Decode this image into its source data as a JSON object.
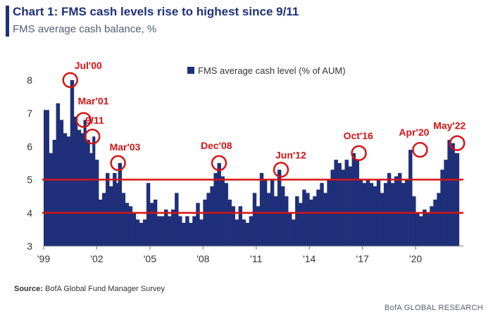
{
  "header": {
    "title": "Chart 1: FMS cash levels rise to highest since 9/11",
    "subtitle": "FMS average cash balance, %"
  },
  "footer": {
    "source_label": "Source:",
    "source_text": "BofA Global Fund Manager Survey",
    "brand": "BofA GLOBAL RESEARCH"
  },
  "colors": {
    "title": "#1f2f7a",
    "bar": "#1f2f7a",
    "annotation": "#d51414",
    "reference_line": "#d51414"
  },
  "chart_data": {
    "type": "bar",
    "title": "FMS cash levels rise to highest since 9/11",
    "ylabel": "FMS average cash balance, %",
    "xlabel": "",
    "ylim": [
      3,
      8.4
    ],
    "yticks": [
      3,
      4,
      5,
      6,
      7,
      8
    ],
    "xlim": [
      1999.0,
      2022.7
    ],
    "xticks": [
      "'99",
      "'02",
      "'05",
      "'08",
      "'11",
      "'14",
      "'17",
      "'20"
    ],
    "xtick_years": [
      1999,
      2002,
      2005,
      2008,
      2011,
      2014,
      2017,
      2020
    ],
    "legend": {
      "label": "FMS average cash level (% of AUM)",
      "position": "top-center"
    },
    "reference_lines": [
      5.0,
      4.0
    ],
    "series": [
      {
        "name": "FMS average cash level (% of AUM)",
        "points": [
          [
            1999.0,
            7.1
          ],
          [
            1999.3,
            5.8
          ],
          [
            1999.5,
            6.2
          ],
          [
            1999.7,
            7.3
          ],
          [
            1999.9,
            6.8
          ],
          [
            2000.1,
            6.4
          ],
          [
            2000.3,
            6.3
          ],
          [
            2000.5,
            8.0
          ],
          [
            2000.7,
            6.9
          ],
          [
            2000.9,
            6.5
          ],
          [
            2001.1,
            6.4
          ],
          [
            2001.25,
            6.8
          ],
          [
            2001.4,
            6.2
          ],
          [
            2001.6,
            5.8
          ],
          [
            2001.75,
            6.3
          ],
          [
            2001.9,
            5.6
          ],
          [
            2002.1,
            4.4
          ],
          [
            2002.3,
            4.6
          ],
          [
            2002.5,
            5.2
          ],
          [
            2002.7,
            4.8
          ],
          [
            2002.9,
            5.2
          ],
          [
            2003.1,
            4.9
          ],
          [
            2003.2,
            5.5
          ],
          [
            2003.4,
            4.6
          ],
          [
            2003.6,
            4.3
          ],
          [
            2003.8,
            4.2
          ],
          [
            2004.0,
            4.0
          ],
          [
            2004.2,
            3.8
          ],
          [
            2004.4,
            3.7
          ],
          [
            2004.6,
            3.8
          ],
          [
            2004.8,
            4.9
          ],
          [
            2005.0,
            4.3
          ],
          [
            2005.2,
            4.4
          ],
          [
            2005.4,
            3.9
          ],
          [
            2005.6,
            3.9
          ],
          [
            2005.8,
            4.1
          ],
          [
            2006.0,
            3.9
          ],
          [
            2006.2,
            4.1
          ],
          [
            2006.4,
            4.6
          ],
          [
            2006.6,
            3.9
          ],
          [
            2006.8,
            3.7
          ],
          [
            2007.0,
            3.9
          ],
          [
            2007.2,
            3.7
          ],
          [
            2007.4,
            3.9
          ],
          [
            2007.6,
            4.3
          ],
          [
            2007.8,
            3.8
          ],
          [
            2008.0,
            4.4
          ],
          [
            2008.2,
            4.6
          ],
          [
            2008.4,
            4.8
          ],
          [
            2008.6,
            5.2
          ],
          [
            2008.8,
            5.5
          ],
          [
            2009.0,
            5.1
          ],
          [
            2009.2,
            4.9
          ],
          [
            2009.4,
            4.4
          ],
          [
            2009.6,
            4.2
          ],
          [
            2009.8,
            3.8
          ],
          [
            2010.0,
            4.2
          ],
          [
            2010.2,
            3.8
          ],
          [
            2010.4,
            3.7
          ],
          [
            2010.6,
            3.9
          ],
          [
            2010.8,
            4.6
          ],
          [
            2011.0,
            4.2
          ],
          [
            2011.2,
            5.2
          ],
          [
            2011.4,
            5.0
          ],
          [
            2011.6,
            4.6
          ],
          [
            2011.8,
            5.0
          ],
          [
            2012.0,
            4.5
          ],
          [
            2012.2,
            5.3
          ],
          [
            2012.4,
            4.8
          ],
          [
            2012.6,
            4.5
          ],
          [
            2012.8,
            4.0
          ],
          [
            2013.0,
            3.8
          ],
          [
            2013.2,
            4.5
          ],
          [
            2013.4,
            4.3
          ],
          [
            2013.6,
            4.7
          ],
          [
            2013.8,
            4.6
          ],
          [
            2014.0,
            4.4
          ],
          [
            2014.2,
            4.5
          ],
          [
            2014.4,
            4.7
          ],
          [
            2014.6,
            4.9
          ],
          [
            2014.8,
            4.6
          ],
          [
            2015.0,
            5.0
          ],
          [
            2015.2,
            5.3
          ],
          [
            2015.4,
            5.6
          ],
          [
            2015.6,
            5.5
          ],
          [
            2015.8,
            5.3
          ],
          [
            2016.0,
            5.6
          ],
          [
            2016.2,
            5.4
          ],
          [
            2016.4,
            5.8
          ],
          [
            2016.6,
            5.6
          ],
          [
            2016.8,
            5.0
          ],
          [
            2017.0,
            4.9
          ],
          [
            2017.2,
            5.0
          ],
          [
            2017.4,
            4.9
          ],
          [
            2017.6,
            4.8
          ],
          [
            2017.8,
            5.0
          ],
          [
            2018.0,
            4.6
          ],
          [
            2018.2,
            4.9
          ],
          [
            2018.4,
            5.2
          ],
          [
            2018.6,
            4.9
          ],
          [
            2018.8,
            5.1
          ],
          [
            2019.0,
            5.2
          ],
          [
            2019.2,
            4.9
          ],
          [
            2019.4,
            5.0
          ],
          [
            2019.6,
            5.9
          ],
          [
            2019.8,
            4.5
          ],
          [
            2020.0,
            4.0
          ],
          [
            2020.2,
            3.9
          ],
          [
            2020.4,
            4.1
          ],
          [
            2020.6,
            4.0
          ],
          [
            2020.8,
            4.2
          ],
          [
            2021.0,
            4.4
          ],
          [
            2021.2,
            4.6
          ],
          [
            2021.4,
            5.3
          ],
          [
            2021.6,
            5.6
          ],
          [
            2021.8,
            6.2
          ],
          [
            2022.0,
            6.1
          ],
          [
            2022.2,
            5.8
          ]
        ]
      }
    ],
    "annotations": [
      {
        "label": "Jul'00",
        "x": 2000.5,
        "y": 8.0
      },
      {
        "label": "Mar'01",
        "x": 2001.25,
        "y": 6.8
      },
      {
        "label": "9/11",
        "x": 2001.75,
        "y": 6.3
      },
      {
        "label": "Mar'03",
        "x": 2003.2,
        "y": 5.5
      },
      {
        "label": "Dec'08",
        "x": 2008.9,
        "y": 5.5
      },
      {
        "label": "Jun'12",
        "x": 2012.4,
        "y": 5.3
      },
      {
        "label": "Oct'16",
        "x": 2016.8,
        "y": 5.8
      },
      {
        "label": "Apr'20",
        "x": 2020.25,
        "y": 5.9
      },
      {
        "label": "May'22",
        "x": 2022.35,
        "y": 6.1
      }
    ]
  }
}
